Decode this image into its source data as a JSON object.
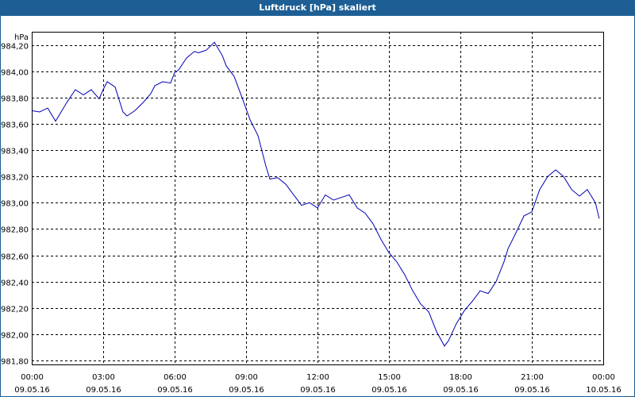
{
  "window": {
    "title": "Luftdruck [hPa] skaliert"
  },
  "chart_data": {
    "type": "line",
    "title": "Luftdruck [hPa] skaliert",
    "ylabel": "hPa",
    "xlabel": "",
    "ylim": [
      981.77,
      984.3
    ],
    "xlim_hours": [
      0,
      24
    ],
    "grid": true,
    "y_ticks": [
      "984,20",
      "984,00",
      "983,80",
      "983,60",
      "983,40",
      "983,20",
      "983,00",
      "982,80",
      "982,60",
      "982,40",
      "982,20",
      "982,00",
      "981,80"
    ],
    "x_ticks": [
      {
        "time": "00:00",
        "date": "09.05.16"
      },
      {
        "time": "03:00",
        "date": "09.05.16"
      },
      {
        "time": "06:00",
        "date": "09.05.16"
      },
      {
        "time": "09:00",
        "date": "09.05.16"
      },
      {
        "time": "12:00",
        "date": "09.05.16"
      },
      {
        "time": "15:00",
        "date": "09.05.16"
      },
      {
        "time": "18:00",
        "date": "09.05.16"
      },
      {
        "time": "21:00",
        "date": "09.05.16"
      },
      {
        "time": "00:00",
        "date": "10.05.16"
      }
    ],
    "series": [
      {
        "color": "#0000b4",
        "x_hours": [
          0,
          0.33,
          0.67,
          1.0,
          1.33,
          1.5,
          1.83,
          2.17,
          2.5,
          2.83,
          3.0,
          3.17,
          3.5,
          3.83,
          4.0,
          4.33,
          4.67,
          5.0,
          5.17,
          5.5,
          5.83,
          6.0,
          6.17,
          6.5,
          6.83,
          7.0,
          7.33,
          7.67,
          8.0,
          8.17,
          8.5,
          8.83,
          9.17,
          9.5,
          9.83,
          10.0,
          10.33,
          10.67,
          11.0,
          11.33,
          11.67,
          12.0,
          12.33,
          12.67,
          13.0,
          13.33,
          13.67,
          14.0,
          14.33,
          14.67,
          15.0,
          15.33,
          15.67,
          16.0,
          16.33,
          16.67,
          17.0,
          17.33,
          17.5,
          17.83,
          18.17,
          18.5,
          18.83,
          19.17,
          19.5,
          19.83,
          20.0,
          20.33,
          20.67,
          21.0,
          21.33,
          21.67,
          22.0,
          22.33,
          22.67,
          23.0,
          23.33,
          23.67,
          23.83
        ],
        "values": [
          983.7,
          983.69,
          983.72,
          983.62,
          983.72,
          983.77,
          983.86,
          983.82,
          983.86,
          983.79,
          983.86,
          983.92,
          983.88,
          983.69,
          983.66,
          983.7,
          983.76,
          983.83,
          983.89,
          983.92,
          983.91,
          983.99,
          984.01,
          984.1,
          984.15,
          984.14,
          984.16,
          984.22,
          984.12,
          984.04,
          983.96,
          983.8,
          983.63,
          983.51,
          983.28,
          983.18,
          983.19,
          983.14,
          983.06,
          982.98,
          983.0,
          982.96,
          983.06,
          983.02,
          983.04,
          983.06,
          982.96,
          982.92,
          982.84,
          982.72,
          982.62,
          982.55,
          982.45,
          982.33,
          982.23,
          982.17,
          982.02,
          981.91,
          981.95,
          982.08,
          982.18,
          982.25,
          982.33,
          982.31,
          982.4,
          982.55,
          982.65,
          982.77,
          982.9,
          982.93,
          983.1,
          983.2,
          983.25,
          983.2,
          983.1,
          983.05,
          983.1,
          983.0,
          982.88
        ]
      }
    ]
  }
}
